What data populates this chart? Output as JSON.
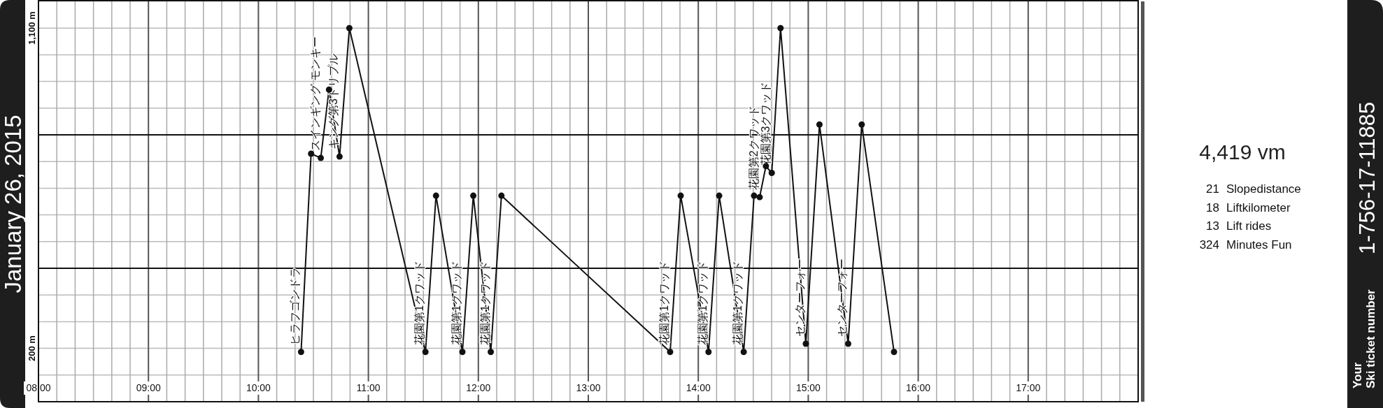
{
  "chart_data": [
    {
      "type": "line",
      "title": "January 26, 2015",
      "xlim": [
        8,
        18
      ],
      "ylim": [
        50,
        1175
      ],
      "xticks": [
        {
          "value": 8,
          "label": "08:00"
        },
        {
          "value": 9,
          "label": "09:00"
        },
        {
          "value": 10,
          "label": "10:00"
        },
        {
          "value": 11,
          "label": "11:00"
        },
        {
          "value": 12,
          "label": "12:00"
        },
        {
          "value": 13,
          "label": "13:00"
        },
        {
          "value": 14,
          "label": "14:00"
        },
        {
          "value": 15,
          "label": "15:00"
        },
        {
          "value": 16,
          "label": "16:00"
        },
        {
          "value": 17,
          "label": "17:00"
        }
      ],
      "yticks": [
        {
          "value": 1100,
          "label": "1,100 m"
        },
        {
          "value": 200,
          "label": "200 m"
        }
      ],
      "ref_lines": [
        {
          "axis": "y",
          "value": 800,
          "color": "#111111"
        },
        {
          "axis": "y",
          "value": 425,
          "color": "#111111"
        }
      ],
      "grid": true,
      "marker": "circle",
      "line_style": "solid",
      "series": [
        {
          "color": "#111111",
          "x": [
            10.388,
            10.479,
            10.567,
            10.642,
            10.738,
            10.827,
            11.519,
            11.615,
            11.855,
            11.954,
            12.113,
            12.21,
            13.744,
            13.84,
            14.093,
            14.19,
            14.413,
            14.507,
            14.558,
            14.615,
            14.668,
            14.748,
            14.978,
            15.102,
            15.363,
            15.486,
            15.78
          ],
          "values": [
            190,
            747,
            735,
            927,
            739,
            1100,
            190,
            629,
            190,
            629,
            190,
            629,
            190,
            629,
            190,
            629,
            190,
            629,
            625,
            712,
            693,
            1100,
            213,
            829,
            213,
            829,
            190
          ]
        }
      ],
      "annotations": [
        {
          "text": "ヒラフゴンドラ",
          "x": 10.388,
          "y": 190
        },
        {
          "text": "スインギング モンキー",
          "x": 10.567,
          "y": 735
        },
        {
          "text": "キング第3トリプル",
          "x": 10.738,
          "y": 739
        },
        {
          "text": "花園第1クワッド",
          "x": 11.519,
          "y": 190
        },
        {
          "text": "花園第1クワッド",
          "x": 11.855,
          "y": 190
        },
        {
          "text": "花園第1クワッド",
          "x": 12.113,
          "y": 190
        },
        {
          "text": "花園第1クワッド",
          "x": 13.744,
          "y": 190
        },
        {
          "text": "花園第1クワッド",
          "x": 14.093,
          "y": 190
        },
        {
          "text": "花園第1クワッド",
          "x": 14.413,
          "y": 190
        },
        {
          "text": "花園第2クワッド",
          "x": 14.558,
          "y": 625
        },
        {
          "text": "花園第3クワッド",
          "x": 14.668,
          "y": 693
        },
        {
          "text": "センターフォー",
          "x": 14.978,
          "y": 213
        },
        {
          "text": "センターフォー",
          "x": 15.363,
          "y": 213
        }
      ]
    },
    {
      "type": "other",
      "title": "4,419 vm",
      "annotations": [
        "21 Slopedistance",
        "18 Liftkilometer",
        "13 Lift rides",
        "324 Minutes Fun"
      ]
    },
    {
      "type": "other",
      "title": "1-756-17-11885",
      "subtitle": "Your\nSki ticket number"
    }
  ]
}
